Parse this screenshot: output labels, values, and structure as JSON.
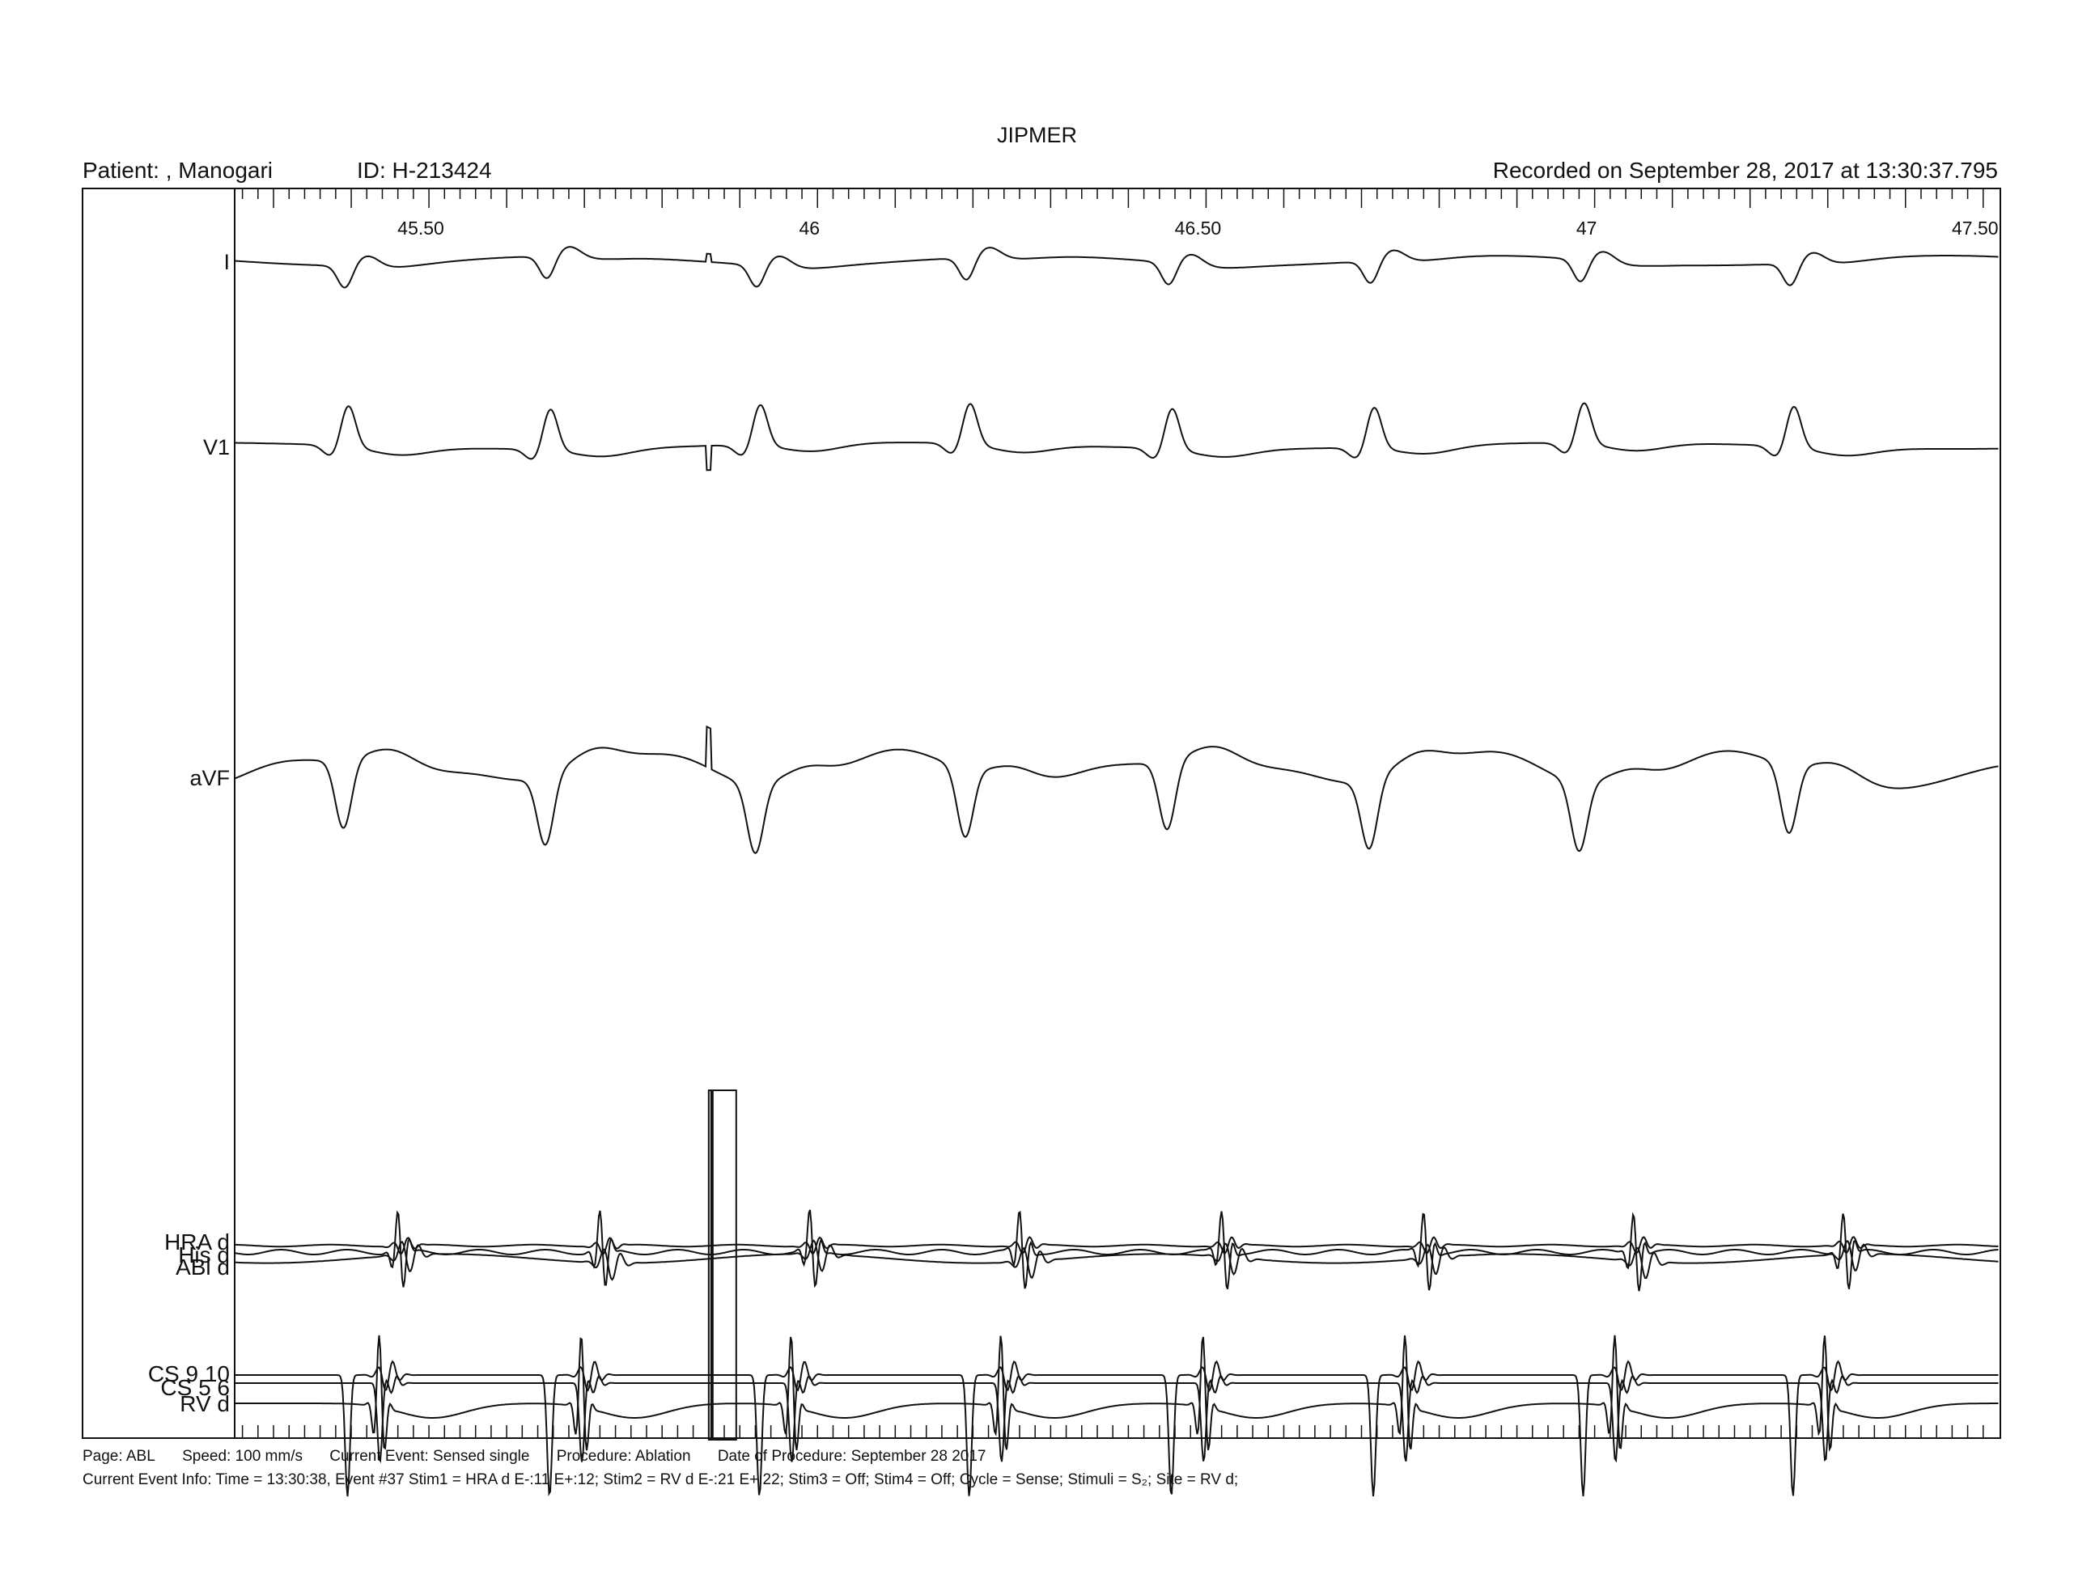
{
  "header": {
    "title": "JIPMER",
    "patient": "Patient: , Manogari",
    "id": "ID: H-213424",
    "recorded": "Recorded on September 28, 2017 at 13:30:37.795"
  },
  "footer": {
    "page": "Page: ABL",
    "speed": "Speed: 100 mm/s",
    "current_event": "Current Event: Sensed single",
    "procedure": "Procedure: Ablation",
    "date_of_procedure": "Date of Procedure: September 28 2017",
    "event_info": "Current Event Info: Time = 13:30:38,  Event #37   Stim1 = HRA d E-:11 E+:12;  Stim2 = RV d E-:21 E+:22;  Stim3 = Off;  Stim4 = Off;  Cycle = Sense;  Stimuli = S₂;  Site = RV d;"
  },
  "chart_data": {
    "type": "line",
    "x_unit": "s",
    "xlim": [
      45.25,
      47.52
    ],
    "x_tick_labels": [
      "45.50",
      "46",
      "46.50",
      "47",
      "47.50"
    ],
    "x_tick_values": [
      45.5,
      46.0,
      46.5,
      47.0,
      47.5
    ],
    "beat_times": [
      45.39,
      45.65,
      45.92,
      46.19,
      46.45,
      46.71,
      46.98,
      47.25
    ],
    "stimulus_time": 45.86,
    "channels": [
      {
        "name": "I",
        "group": "surface"
      },
      {
        "name": "V1",
        "group": "surface"
      },
      {
        "name": "aVF",
        "group": "surface"
      },
      {
        "name": "HRA d",
        "group": "intracardiac"
      },
      {
        "name": "His d",
        "group": "intracardiac"
      },
      {
        "name": "ABl d",
        "group": "intracardiac"
      },
      {
        "name": "CS 9 10",
        "group": "intracardiac"
      },
      {
        "name": "CS 5 6",
        "group": "intracardiac"
      },
      {
        "name": "RV d",
        "group": "intracardiac"
      }
    ],
    "grid": false,
    "colors": {
      "trace": "#111111",
      "background": "#ffffff"
    }
  }
}
